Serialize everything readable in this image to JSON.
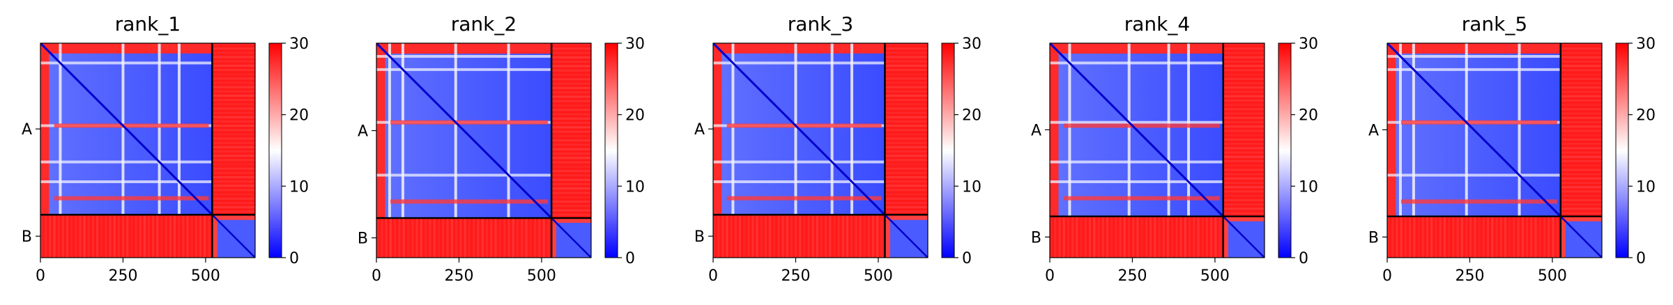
{
  "figure": {
    "panel_titles": [
      "rank_1",
      "rank_2",
      "rank_3",
      "rank_4",
      "rank_5"
    ]
  },
  "chart_data": [
    {
      "type": "heatmap",
      "title": "rank_1",
      "chains": [
        {
          "label": "A",
          "start": 0,
          "end": 520
        },
        {
          "label": "B",
          "start": 520,
          "end": 650
        }
      ],
      "x_ticks": [
        0,
        250,
        500
      ],
      "y_tick_labels": [
        "A",
        "B"
      ],
      "xlim": [
        0,
        650
      ],
      "colorbar": {
        "min": 0,
        "max": 30,
        "ticks": [
          0,
          10,
          20,
          30
        ],
        "colormap": [
          "#0000ff",
          "#ffffff",
          "#ff0000"
        ]
      },
      "features": {
        "white_stripes": [
          60,
          250,
          360,
          420
        ],
        "red_stripes_row": [
          250,
          470
        ]
      }
    },
    {
      "type": "heatmap",
      "title": "rank_2",
      "chains": [
        {
          "label": "A",
          "start": 0,
          "end": 530
        },
        {
          "label": "B",
          "start": 530,
          "end": 650
        }
      ],
      "x_ticks": [
        0,
        250,
        500
      ],
      "y_tick_labels": [
        "A",
        "B"
      ],
      "xlim": [
        0,
        650
      ],
      "colorbar": {
        "min": 0,
        "max": 30,
        "ticks": [
          0,
          10,
          20,
          30
        ],
        "colormap": [
          "#0000ff",
          "#ffffff",
          "#ff0000"
        ]
      },
      "features": {
        "white_stripes": [
          40,
          80,
          240,
          400
        ],
        "red_stripes_row": [
          240,
          480
        ]
      }
    },
    {
      "type": "heatmap",
      "title": "rank_3",
      "chains": [
        {
          "label": "A",
          "start": 0,
          "end": 520
        },
        {
          "label": "B",
          "start": 520,
          "end": 650
        }
      ],
      "x_ticks": [
        0,
        250,
        500
      ],
      "y_tick_labels": [
        "A",
        "B"
      ],
      "xlim": [
        0,
        650
      ],
      "colorbar": {
        "min": 0,
        "max": 30,
        "ticks": [
          0,
          10,
          20,
          30
        ],
        "colormap": [
          "#0000ff",
          "#ffffff",
          "#ff0000"
        ]
      },
      "features": {
        "white_stripes": [
          60,
          250,
          360,
          420
        ],
        "red_stripes_row": [
          250,
          470
        ]
      }
    },
    {
      "type": "heatmap",
      "title": "rank_4",
      "chains": [
        {
          "label": "A",
          "start": 0,
          "end": 525
        },
        {
          "label": "B",
          "start": 525,
          "end": 650
        }
      ],
      "x_ticks": [
        0,
        250,
        500
      ],
      "y_tick_labels": [
        "A",
        "B"
      ],
      "xlim": [
        0,
        650
      ],
      "colorbar": {
        "min": 0,
        "max": 30,
        "ticks": [
          0,
          10,
          20,
          30
        ],
        "colormap": [
          "#0000ff",
          "#ffffff",
          "#ff0000"
        ]
      },
      "features": {
        "white_stripes": [
          60,
          240,
          360,
          420
        ],
        "red_stripes_row": [
          250,
          470
        ]
      }
    },
    {
      "type": "heatmap",
      "title": "rank_5",
      "chains": [
        {
          "label": "A",
          "start": 0,
          "end": 525
        },
        {
          "label": "B",
          "start": 525,
          "end": 650
        }
      ],
      "x_ticks": [
        0,
        250,
        500
      ],
      "y_tick_labels": [
        "A",
        "B"
      ],
      "xlim": [
        0,
        650
      ],
      "colorbar": {
        "min": 0,
        "max": 30,
        "ticks": [
          0,
          10,
          20,
          30
        ],
        "colormap": [
          "#0000ff",
          "#ffffff",
          "#ff0000"
        ]
      },
      "features": {
        "white_stripes": [
          40,
          80,
          240,
          400
        ],
        "red_stripes_row": [
          240,
          480
        ]
      }
    }
  ]
}
